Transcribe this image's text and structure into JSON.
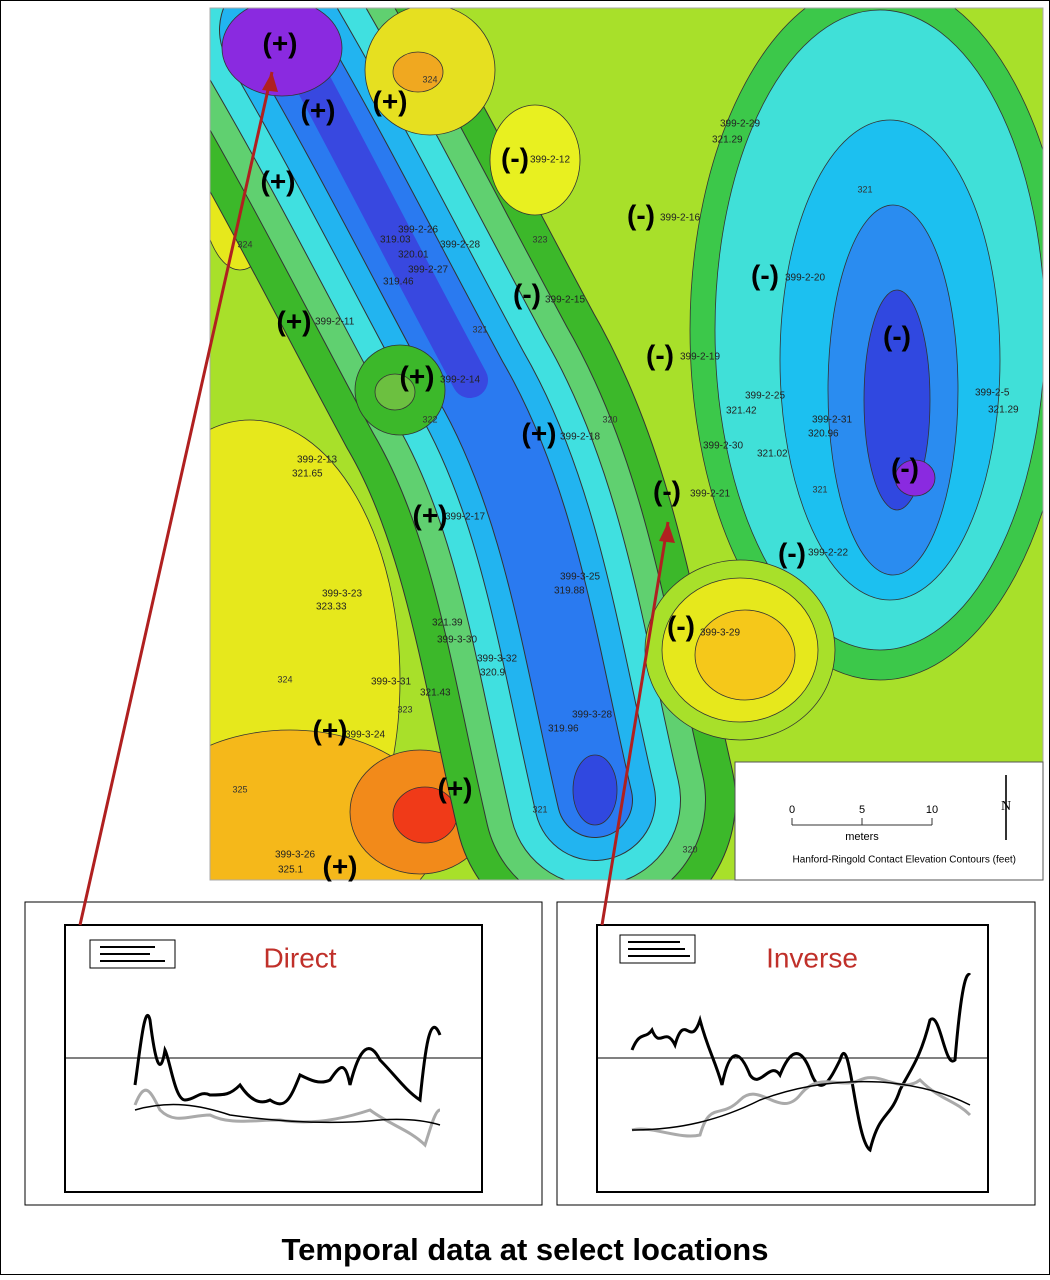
{
  "map": {
    "markers": [
      "(+)",
      "(+)",
      "(+)",
      "(-)",
      "(+)",
      "(-)",
      "(-)",
      "(-)",
      "(+)",
      "(-)",
      "(-)",
      "(+)",
      "(+)",
      "(-)",
      "(-)",
      "(+)",
      "(-)",
      "(-)",
      "(+)",
      "(+)",
      "(+)"
    ],
    "wells": [
      "399-2-29",
      "321.29",
      "399-2-12",
      "399-2-16",
      "399-2-26",
      "319.03",
      "399-2-28",
      "320.01",
      "399-2-27",
      "319.46",
      "399-2-20",
      "399-2-15",
      "399-2-11",
      "399-2-19",
      "399-2-14",
      "399-2-25",
      "321.42",
      "399-2-31",
      "320.96",
      "399-2-5",
      "321.29",
      "399-2-18",
      "399-2-30",
      "321.02",
      "399-2-13",
      "321.65",
      "399-2-21",
      "399-2-17",
      "399-2-22",
      "399-3-25",
      "319.88",
      "399-3-23",
      "323.33",
      "321.39",
      "399-3-30",
      "399-3-32",
      "320.9",
      "399-3-29",
      "399-3-31",
      "321.43",
      "399-3-28",
      "319.96",
      "399-3-24",
      "399-3-26",
      "325.1"
    ],
    "contour_labels": [
      "324",
      "321",
      "323",
      "324",
      "321",
      "322",
      "320",
      "323",
      "321",
      "324",
      "325",
      "321",
      "320"
    ],
    "scale_ticks": [
      "0",
      "5",
      "10"
    ],
    "scale_unit": "meters",
    "north": "N",
    "legend": "Hanford-Ringold Contact Elevation Contours (feet)"
  },
  "insets": [
    {
      "title": "Direct"
    },
    {
      "title": "Inverse"
    }
  ],
  "caption": "Temporal data at select locations"
}
